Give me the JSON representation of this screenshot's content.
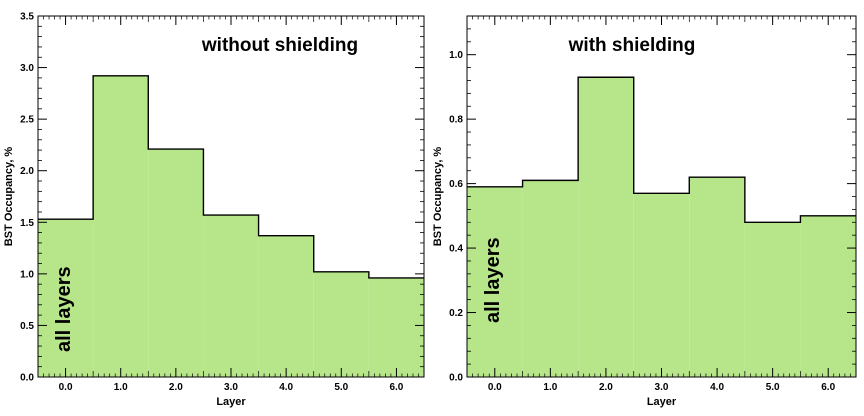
{
  "chart_data": [
    {
      "type": "area",
      "title": "without shielding",
      "annotation": "all layers",
      "xlabel": "Layer",
      "ylabel": "BST Occupancy, %",
      "xlim": [
        -0.5,
        6.5
      ],
      "ylim": [
        0,
        3.5
      ],
      "xticks": [
        0,
        1,
        2,
        3,
        4,
        5,
        6
      ],
      "xtick_labels": [
        "0.0",
        "1.0",
        "2.0",
        "3.0",
        "4.0",
        "5.0",
        "6.0"
      ],
      "yticks": [
        0,
        0.5,
        1.0,
        1.5,
        2.0,
        2.5,
        3.0,
        3.5
      ],
      "ytick_labels": [
        "0.0",
        "0.5",
        "1.0",
        "1.5",
        "2.0",
        "2.5",
        "3.0",
        "3.5"
      ],
      "x": [
        0,
        1,
        2,
        3,
        4,
        5,
        6
      ],
      "values": [
        1.53,
        2.92,
        2.21,
        1.57,
        1.37,
        1.02,
        0.96
      ],
      "fill_color": "#b7e68a",
      "line_color": "#000000",
      "grid": false
    },
    {
      "type": "area",
      "title": "with shielding",
      "annotation": "all layers",
      "xlabel": "Layer",
      "ylabel": "BST Occupancy, %",
      "xlim": [
        -0.5,
        6.5
      ],
      "ylim": [
        0,
        1.12
      ],
      "xticks": [
        0,
        1,
        2,
        3,
        4,
        5,
        6
      ],
      "xtick_labels": [
        "0.0",
        "1.0",
        "2.0",
        "3.0",
        "4.0",
        "5.0",
        "6.0"
      ],
      "yticks": [
        0,
        0.2,
        0.4,
        0.6,
        0.8,
        1.0
      ],
      "ytick_labels": [
        "0.0",
        "0.2",
        "0.4",
        "0.6",
        "0.8",
        "1.0"
      ],
      "x": [
        0,
        1,
        2,
        3,
        4,
        5,
        6
      ],
      "values": [
        0.59,
        0.61,
        0.93,
        0.57,
        0.62,
        0.48,
        0.5
      ],
      "fill_color": "#b7e68a",
      "line_color": "#000000",
      "grid": false
    }
  ]
}
